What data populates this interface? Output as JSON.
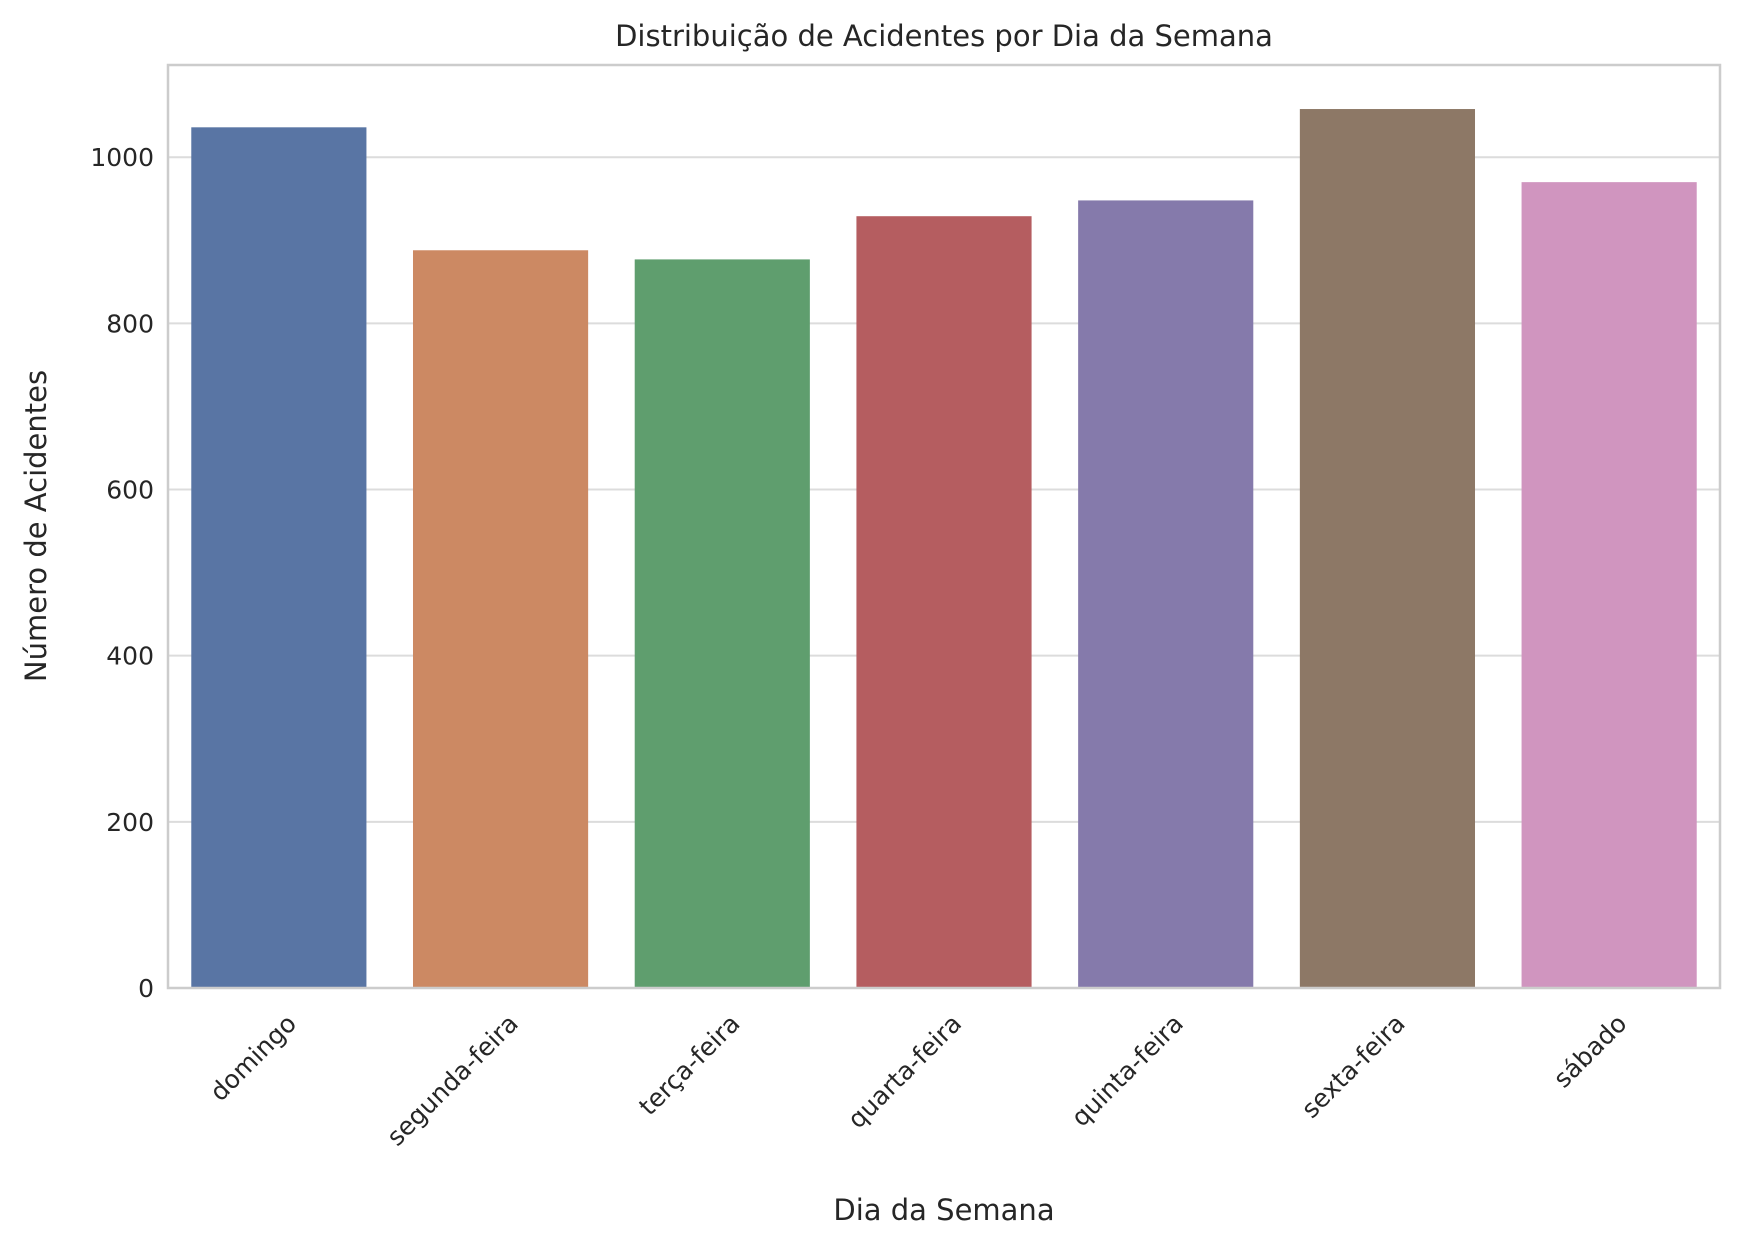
{
  "chart_data": {
    "type": "bar",
    "title": "Distribuição de Acidentes por Dia da Semana",
    "xlabel": "Dia da Semana",
    "ylabel": "Número de Acidentes",
    "categories": [
      "domingo",
      "segunda-feira",
      "terça-feira",
      "quarta-feira",
      "quinta-feira",
      "sexta-feira",
      "sábado"
    ],
    "values": [
      1036,
      888,
      877,
      929,
      948,
      1058,
      970
    ],
    "colors": [
      "#5975a4",
      "#cc8963",
      "#5f9e6e",
      "#b55d60",
      "#857aab",
      "#8d7866",
      "#d095bf"
    ],
    "ylim": [
      0,
      1111
    ],
    "yticks": [
      0,
      200,
      400,
      600,
      800,
      1000
    ],
    "grid": "horizontal",
    "xtick_rotation": 45
  }
}
